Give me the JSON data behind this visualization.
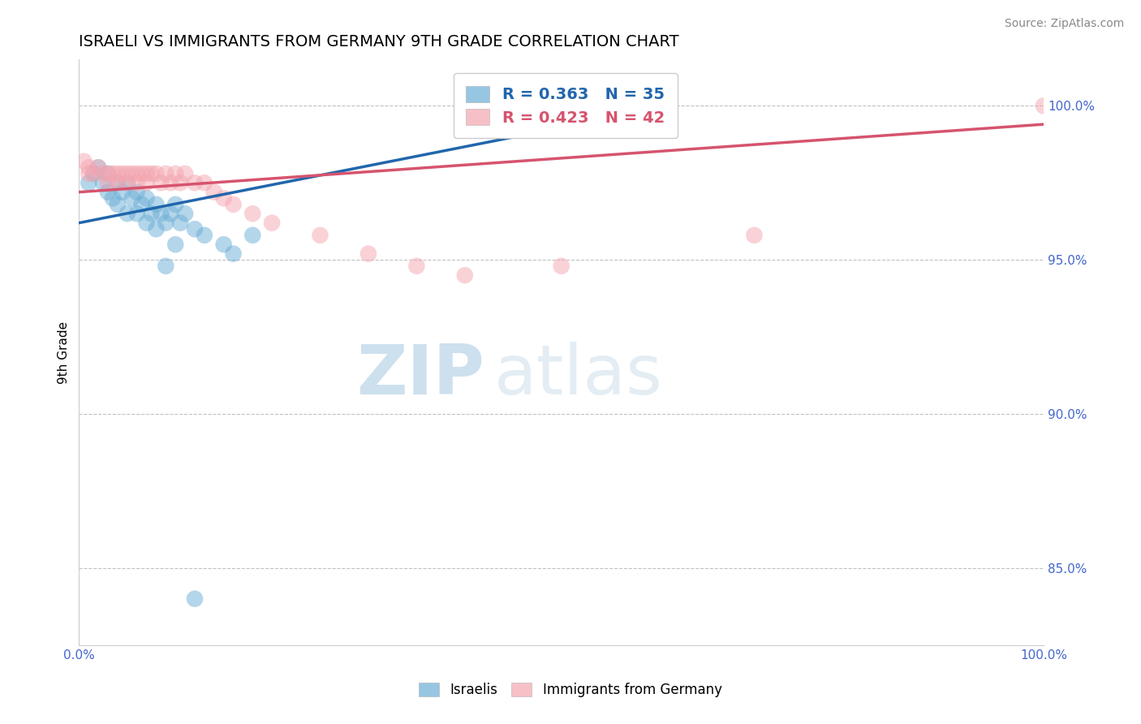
{
  "title": "ISRAELI VS IMMIGRANTS FROM GERMANY 9TH GRADE CORRELATION CHART",
  "source": "Source: ZipAtlas.com",
  "ylabel": "9th Grade",
  "xlim": [
    0,
    1
  ],
  "ylim": [
    0.825,
    1.015
  ],
  "xticks": [
    0.0,
    1.0
  ],
  "xticklabels": [
    "0.0%",
    "100.0%"
  ],
  "yticks": [
    0.85,
    0.9,
    0.95,
    1.0
  ],
  "yticklabels": [
    "85.0%",
    "90.0%",
    "95.0%",
    "100.0%"
  ],
  "blue_color": "#6baed6",
  "pink_color": "#f4a6b0",
  "blue_line_color": "#2166ac",
  "pink_line_color": "#d6546e",
  "R_blue": 0.363,
  "N_blue": 35,
  "R_pink": 0.423,
  "N_pink": 42,
  "israelis_x": [
    0.01,
    0.015,
    0.02,
    0.025,
    0.03,
    0.03,
    0.035,
    0.04,
    0.04,
    0.045,
    0.05,
    0.05,
    0.055,
    0.06,
    0.06,
    0.065,
    0.07,
    0.07,
    0.075,
    0.08,
    0.08,
    0.085,
    0.09,
    0.095,
    0.1,
    0.105,
    0.11,
    0.12,
    0.13,
    0.15,
    0.16,
    0.18,
    0.1,
    0.09,
    0.12
  ],
  "israelis_y": [
    0.975,
    0.978,
    0.98,
    0.975,
    0.978,
    0.972,
    0.97,
    0.975,
    0.968,
    0.972,
    0.975,
    0.965,
    0.97,
    0.972,
    0.965,
    0.968,
    0.97,
    0.962,
    0.965,
    0.968,
    0.96,
    0.965,
    0.962,
    0.965,
    0.968,
    0.962,
    0.965,
    0.96,
    0.958,
    0.955,
    0.952,
    0.958,
    0.955,
    0.948,
    0.84
  ],
  "immigrants_x": [
    0.005,
    0.01,
    0.01,
    0.015,
    0.02,
    0.025,
    0.03,
    0.03,
    0.035,
    0.04,
    0.04,
    0.045,
    0.05,
    0.05,
    0.055,
    0.06,
    0.06,
    0.065,
    0.07,
    0.07,
    0.075,
    0.08,
    0.085,
    0.09,
    0.095,
    0.1,
    0.105,
    0.11,
    0.12,
    0.13,
    0.14,
    0.15,
    0.16,
    0.18,
    0.2,
    0.25,
    0.3,
    0.35,
    0.4,
    0.5,
    0.7,
    1.0
  ],
  "immigrants_y": [
    0.982,
    0.98,
    0.978,
    0.978,
    0.98,
    0.978,
    0.978,
    0.975,
    0.978,
    0.978,
    0.975,
    0.978,
    0.978,
    0.975,
    0.978,
    0.978,
    0.975,
    0.978,
    0.978,
    0.975,
    0.978,
    0.978,
    0.975,
    0.978,
    0.975,
    0.978,
    0.975,
    0.978,
    0.975,
    0.975,
    0.972,
    0.97,
    0.968,
    0.965,
    0.962,
    0.958,
    0.952,
    0.948,
    0.945,
    0.948,
    0.958,
    1.0
  ],
  "watermark_zip": "ZIP",
  "watermark_atlas": "atlas",
  "background_color": "#ffffff",
  "grid_color": "#bbbbbb",
  "tick_color": "#4466cc",
  "title_fontsize": 14,
  "axis_label_fontsize": 11,
  "tick_fontsize": 11,
  "source_fontsize": 10
}
